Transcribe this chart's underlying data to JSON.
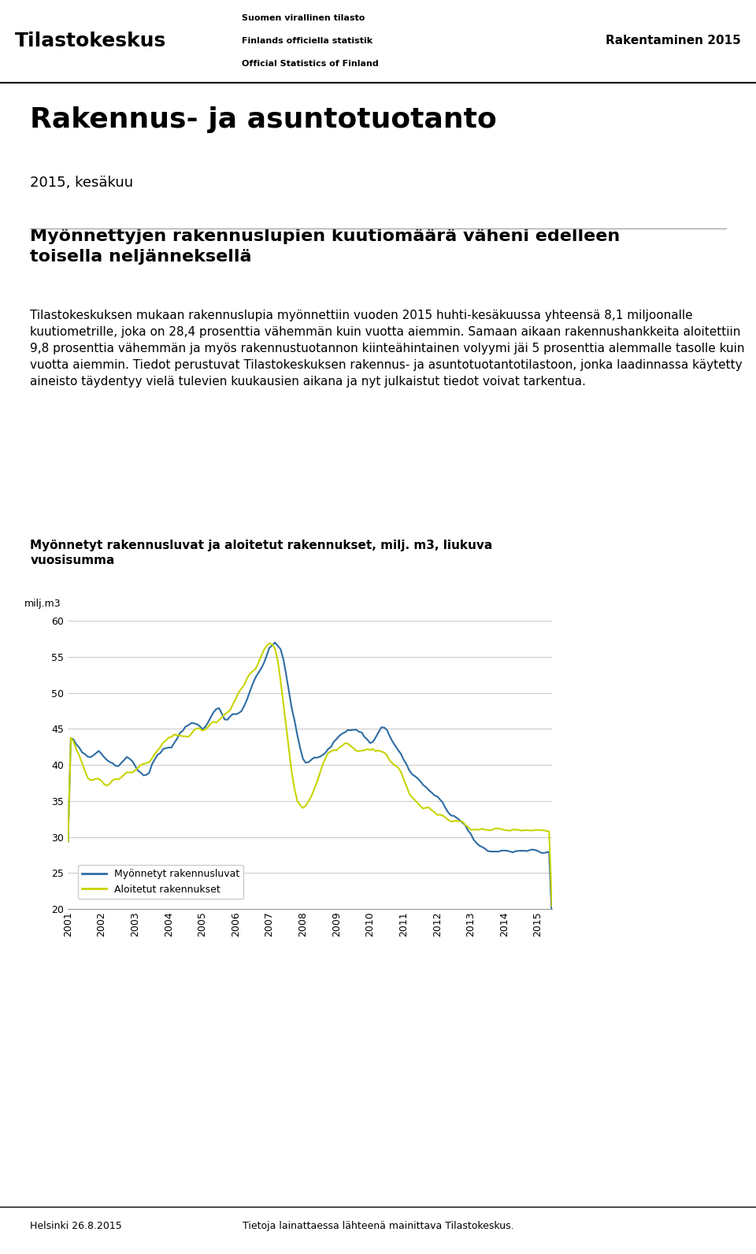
{
  "title_main": "Rakennus- ja asuntotuotanto",
  "subtitle": "2015, kesäkuu",
  "header_right": "Rakentaminen 2015",
  "header_line1": "Suomen virallinen tilasto",
  "header_line2": "Finlands officiella statistik",
  "header_line3": "Official Statistics of Finland",
  "section_title": "Myönnetyt rakennusluvat ja aloitetut rakennukset, milj. m3, liukuva\nvuosisumma",
  "yaxis_label": "milj.m3",
  "body_text": "Tilastokeskuksen mukaan rakennuslupia myönnettiin vuoden 2015 huhti-kesäkuussa yhteensä 8,1 miljoonalle kuutiometrille, joka on 28,4 prosenttia vähemmän kuin vuotta aiemmin. Samaan aikaan rakennushankkeita aloitettiin 9,8 prosenttia vähemmän ja myös rakennustuotannon kiinteähintainen volyymi jäi 5 prosenttia alemmalle tasolle kuin vuotta aiemmin. Tiedot perustuvat Tilastokeskuksen rakennus- ja asuntotuotantotilastoon, jonka laadinnassa käytetty aineisto täydentyy vielä tulevien kuukausien aikana ja nyt julkaistut tiedot voivat tarkentua.",
  "heading_bold": "Myönnettyjen rakennuslupien kuutiomäärä väheni edelleen\ntoisella neljänneksellä",
  "footer_left": "Helsinki 26.8.2015",
  "footer_right": "Tietoja lainattaessa lähteenä mainittava Tilastokeskus.",
  "legend_line1": "Myönnetyt rakennusluvat",
  "legend_line2": "Aloitetut rakennukset",
  "color_blue": "#2e6da4",
  "color_green": "#c8d400",
  "ylim": [
    20,
    60
  ],
  "yticks": [
    20,
    25,
    30,
    35,
    40,
    45,
    50,
    55,
    60
  ],
  "xtick_labels": [
    "2001",
    "2002",
    "2003",
    "2004",
    "2005",
    "2006",
    "2007",
    "2008",
    "2009",
    "2010",
    "2011",
    "2012",
    "2013",
    "2014",
    "2015"
  ],
  "background_color": "#ffffff",
  "blue_data": [
    44,
    44,
    43,
    43,
    42,
    42,
    41,
    41,
    41,
    41,
    42,
    42,
    42,
    41,
    41,
    41,
    40,
    40,
    40,
    40,
    41,
    41,
    41,
    41,
    40,
    39,
    39,
    39,
    38,
    39,
    40,
    41,
    41,
    42,
    42,
    43,
    42,
    43,
    43,
    44,
    44,
    45,
    45,
    46,
    46,
    46,
    46,
    45,
    45,
    45,
    46,
    47,
    47,
    48,
    48,
    47,
    46,
    46,
    47,
    47,
    47,
    47,
    48,
    48,
    49,
    50,
    51,
    52,
    53,
    53,
    54,
    55,
    56,
    57,
    57,
    57,
    56,
    55,
    53,
    50,
    48,
    46,
    44,
    42,
    41,
    40,
    40,
    41,
    41,
    41,
    41,
    41,
    42,
    42,
    43,
    43,
    44,
    44,
    44,
    45,
    45,
    45,
    45,
    45,
    45,
    44,
    44,
    43,
    43,
    43,
    44,
    45,
    45,
    45,
    45,
    44,
    43,
    43,
    42,
    41,
    41,
    40,
    39,
    39,
    38,
    38,
    38,
    37,
    37,
    37,
    36,
    36,
    36,
    35,
    35,
    34,
    33,
    33,
    33,
    33,
    32,
    32,
    32,
    31,
    30,
    30,
    29,
    29,
    29,
    28,
    28,
    28,
    28,
    28,
    28,
    28,
    28,
    28,
    28,
    28,
    28,
    28,
    28,
    28,
    28,
    28,
    28,
    28,
    28,
    28,
    28,
    28,
    28,
    28
  ],
  "green_data": [
    44,
    44,
    43,
    42,
    41,
    40,
    39,
    38,
    38,
    38,
    38,
    38,
    38,
    37,
    37,
    38,
    38,
    38,
    38,
    38,
    39,
    39,
    39,
    39,
    39,
    40,
    40,
    40,
    40,
    40,
    41,
    42,
    42,
    42,
    43,
    43,
    43,
    44,
    44,
    44,
    44,
    44,
    44,
    44,
    44,
    45,
    45,
    45,
    45,
    45,
    45,
    46,
    46,
    46,
    46,
    47,
    47,
    47,
    48,
    48,
    49,
    50,
    51,
    51,
    52,
    53,
    53,
    53,
    54,
    55,
    56,
    57,
    57,
    57,
    56,
    55,
    52,
    48,
    45,
    42,
    39,
    36,
    35,
    34,
    34,
    34,
    35,
    36,
    37,
    38,
    39,
    40,
    41,
    42,
    42,
    42,
    42,
    42,
    43,
    43,
    43,
    43,
    42,
    42,
    42,
    42,
    42,
    42,
    42,
    42,
    42,
    42,
    42,
    42,
    41,
    41,
    40,
    40,
    40,
    39,
    38,
    37,
    36,
    35,
    35,
    35,
    34,
    34,
    34,
    34,
    34,
    33,
    33,
    33,
    33,
    33,
    32,
    32,
    32,
    32,
    32,
    32,
    32,
    31,
    31,
    31,
    31,
    31,
    31,
    31,
    31,
    31,
    31,
    31,
    31,
    31,
    31,
    31,
    31,
    31,
    31,
    31,
    31,
    31,
    31,
    31,
    31,
    31,
    31,
    31,
    31,
    31,
    31,
    31
  ]
}
